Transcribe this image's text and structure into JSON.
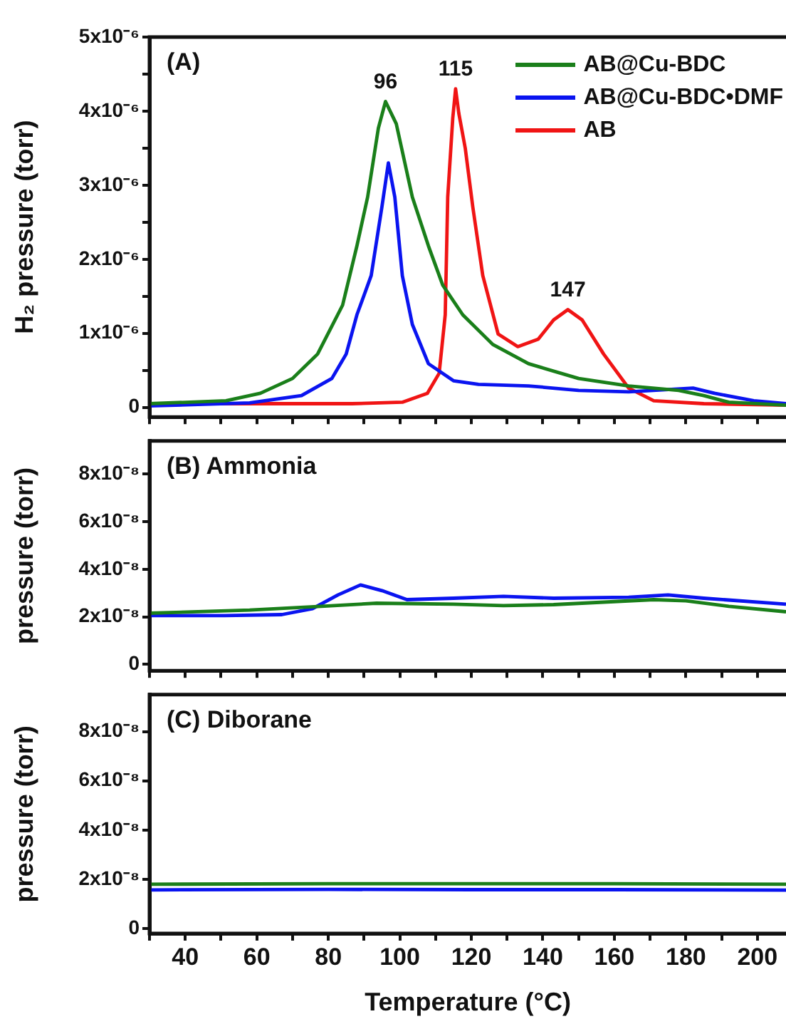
{
  "chart_data": [
    {
      "type": "line",
      "ylabel": "H₂ pressure (torr)",
      "xlim": [
        30,
        208
      ],
      "ylim": [
        -1.3e-07,
        5e-06
      ],
      "xticks": [
        {
          "value": 30,
          "label": null
        },
        {
          "value": 40,
          "label": null
        },
        {
          "value": 50,
          "label": null
        },
        {
          "value": 60,
          "label": null
        },
        {
          "value": 70,
          "label": null
        },
        {
          "value": 80,
          "label": null
        },
        {
          "value": 90,
          "label": null
        },
        {
          "value": 100,
          "label": null
        },
        {
          "value": 110,
          "label": null
        },
        {
          "value": 120,
          "label": null
        },
        {
          "value": 130,
          "label": null
        },
        {
          "value": 140,
          "label": null
        },
        {
          "value": 150,
          "label": null
        },
        {
          "value": 160,
          "label": null
        },
        {
          "value": 170,
          "label": null
        },
        {
          "value": 180,
          "label": null
        },
        {
          "value": 190,
          "label": null
        },
        {
          "value": 200,
          "label": null
        }
      ],
      "yticks": [
        {
          "value": 0,
          "label": "0"
        },
        {
          "value": 5e-07,
          "label": null
        },
        {
          "value": 1e-06,
          "label": "1x10⁻⁶"
        },
        {
          "value": 1.5e-06,
          "label": null
        },
        {
          "value": 2e-06,
          "label": "2x10⁻⁶"
        },
        {
          "value": 2.5e-06,
          "label": null
        },
        {
          "value": 3e-06,
          "label": "3x10⁻⁶"
        },
        {
          "value": 3.5e-06,
          "label": null
        },
        {
          "value": 4e-06,
          "label": "4x10⁻⁶"
        },
        {
          "value": 4.5e-06,
          "label": null
        },
        {
          "value": 5e-06,
          "label": "5x10⁻⁶"
        }
      ],
      "tick_labels": "y",
      "legend": "top right",
      "marker": "none",
      "line_style": "solid",
      "grid": false,
      "annotations": [
        "(A)",
        {
          "text": "96",
          "x": 96,
          "y": 4.13e-06
        },
        {
          "text": "115",
          "x": 115.6,
          "y": 4.3e-06
        },
        {
          "text": "147",
          "x": 147,
          "y": 1.32e-06
        }
      ],
      "series": [
        {
          "name": "AB@Cu-BDC",
          "color": "#1a7f1a",
          "x": [
            30,
            51.4,
            61,
            70,
            77,
            84,
            88,
            91,
            94,
            96,
            99,
            103.5,
            108,
            112,
            117.6,
            126,
            136,
            150,
            164,
            178,
            185,
            192,
            208
          ],
          "values": [
            5e-08,
            9e-08,
            1.9e-07,
            3.9e-07,
            7.2e-07,
            1.38e-06,
            2.18e-06,
            2.84e-06,
            3.77e-06,
            4.13e-06,
            3.83e-06,
            2.84e-06,
            2.18e-06,
            1.65e-06,
            1.25e-06,
            8.5e-07,
            5.9e-07,
            3.9e-07,
            2.9e-07,
            2.3e-07,
            1.6e-07,
            7e-08,
            3e-08
          ]
        },
        {
          "name": "AB@Cu-BDC•DMF",
          "color": "#0a14f0",
          "x": [
            30,
            58,
            72.5,
            81,
            85,
            88,
            92,
            95,
            96.8,
            98.6,
            100.7,
            103.5,
            108,
            115,
            122,
            136,
            150,
            164,
            182,
            188,
            199,
            208
          ],
          "values": [
            2e-08,
            6e-08,
            1.6e-07,
            3.9e-07,
            7.2e-07,
            1.25e-06,
            1.78e-06,
            2.71e-06,
            3.3e-06,
            2.84e-06,
            1.78e-06,
            1.12e-06,
            5.9e-07,
            3.6e-07,
            3.1e-07,
            2.9e-07,
            2.3e-07,
            2.1e-07,
            2.6e-07,
            1.9e-07,
            9e-08,
            5e-08
          ]
        },
        {
          "name": "AB",
          "color": "#f01414",
          "x": [
            30,
            86.6,
            100.7,
            107.7,
            111,
            112.7,
            113.4,
            114.8,
            115.6,
            116.5,
            118.3,
            120.4,
            123.2,
            127.5,
            133,
            138.7,
            143,
            147,
            151,
            157,
            164,
            171,
            185,
            208
          ],
          "values": [
            5e-08,
            5e-08,
            7e-08,
            1.9e-07,
            4.6e-07,
            1.25e-06,
            2.84e-06,
            3.9e-06,
            4.3e-06,
            3.97e-06,
            3.5e-06,
            2.71e-06,
            1.78e-06,
            9.9e-07,
            8.2e-07,
            9.2e-07,
            1.18e-06,
            1.32e-06,
            1.18e-06,
            7.2e-07,
            2.6e-07,
            9e-08,
            5e-08,
            3e-08
          ]
        }
      ]
    },
    {
      "type": "line",
      "ylabel": "pressure (torr)",
      "xlim": [
        30,
        208
      ],
      "ylim": [
        -2.7e-09,
        9.4e-08
      ],
      "xticks": [
        {
          "value": 30,
          "label": null
        },
        {
          "value": 40,
          "label": null
        },
        {
          "value": 50,
          "label": null
        },
        {
          "value": 60,
          "label": null
        },
        {
          "value": 70,
          "label": null
        },
        {
          "value": 80,
          "label": null
        },
        {
          "value": 90,
          "label": null
        },
        {
          "value": 100,
          "label": null
        },
        {
          "value": 110,
          "label": null
        },
        {
          "value": 120,
          "label": null
        },
        {
          "value": 130,
          "label": null
        },
        {
          "value": 140,
          "label": null
        },
        {
          "value": 150,
          "label": null
        },
        {
          "value": 160,
          "label": null
        },
        {
          "value": 170,
          "label": null
        },
        {
          "value": 180,
          "label": null
        },
        {
          "value": 190,
          "label": null
        },
        {
          "value": 200,
          "label": null
        }
      ],
      "yticks": [
        {
          "value": 0,
          "label": "0"
        },
        {
          "value": 2e-08,
          "label": "2x10⁻⁸"
        },
        {
          "value": 4e-08,
          "label": "4x10⁻⁸"
        },
        {
          "value": 6e-08,
          "label": "6x10⁻⁸"
        },
        {
          "value": 8e-08,
          "label": "8x10⁻⁸"
        }
      ],
      "tick_labels": "y",
      "marker": "none",
      "line_style": "solid",
      "grid": false,
      "annotations": [
        "(B) Ammonia"
      ],
      "series": [
        {
          "color": "#1a7f1a",
          "x": [
            30,
            58,
            78,
            93.5,
            115,
            129,
            143,
            171,
            180,
            192,
            208
          ],
          "values": [
            2.15e-08,
            2.28e-08,
            2.44e-08,
            2.57e-08,
            2.53e-08,
            2.47e-08,
            2.51e-08,
            2.72e-08,
            2.67e-08,
            2.44e-08,
            2.21e-08
          ]
        },
        {
          "color": "#0a14f0",
          "x": [
            30,
            51,
            67,
            75.6,
            82.7,
            89,
            95,
            102,
            115,
            129,
            143,
            164,
            175,
            185,
            208
          ],
          "values": [
            2.05e-08,
            2.05e-08,
            2.09e-08,
            2.34e-08,
            2.92e-08,
            3.34e-08,
            3.1e-08,
            2.72e-08,
            2.78e-08,
            2.86e-08,
            2.78e-08,
            2.82e-08,
            2.92e-08,
            2.78e-08,
            2.53e-08
          ]
        }
      ]
    },
    {
      "type": "line",
      "xlabel": "Temperature (°C)",
      "ylabel": "pressure (torr)",
      "xlim": [
        30,
        208
      ],
      "ylim": [
        -2e-09,
        9.5e-08
      ],
      "xticks": [
        {
          "value": 30,
          "label": null
        },
        40,
        {
          "value": 50,
          "label": null
        },
        60,
        {
          "value": 70,
          "label": null
        },
        80,
        {
          "value": 90,
          "label": null
        },
        100,
        {
          "value": 110,
          "label": null
        },
        120,
        {
          "value": 130,
          "label": null
        },
        140,
        {
          "value": 150,
          "label": null
        },
        160,
        {
          "value": 170,
          "label": null
        },
        180,
        {
          "value": 190,
          "label": null
        },
        200
      ],
      "yticks": [
        {
          "value": 0,
          "label": "0"
        },
        {
          "value": 2e-08,
          "label": "2x10⁻⁸"
        },
        {
          "value": 4e-08,
          "label": "4x10⁻⁸"
        },
        {
          "value": 6e-08,
          "label": "6x10⁻⁸"
        },
        {
          "value": 8e-08,
          "label": "8x10⁻⁸"
        }
      ],
      "marker": "none",
      "line_style": "solid",
      "grid": false,
      "annotations": [
        "(C) Diborane"
      ],
      "series": [
        {
          "color": "#1a7f1a",
          "x": [
            30,
            80,
            120,
            160,
            208
          ],
          "values": [
            1.8e-08,
            1.82e-08,
            1.82e-08,
            1.82e-08,
            1.8e-08
          ]
        },
        {
          "color": "#0a14f0",
          "x": [
            30,
            80,
            120,
            160,
            208
          ],
          "values": [
            1.57e-08,
            1.59e-08,
            1.58e-08,
            1.58e-08,
            1.56e-08
          ]
        }
      ]
    }
  ]
}
